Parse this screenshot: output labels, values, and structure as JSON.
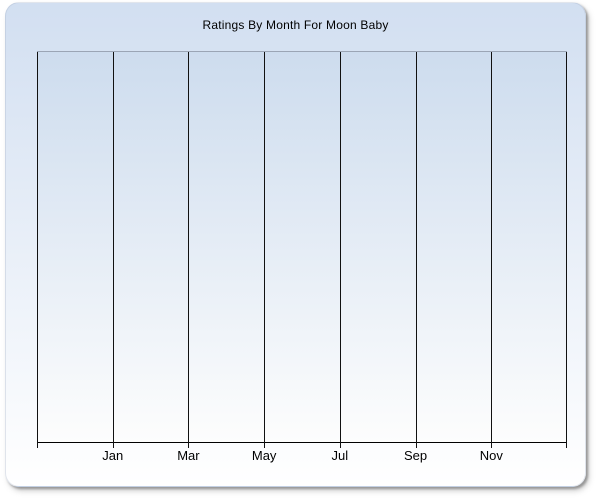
{
  "chart_data": {
    "type": "line",
    "title": "Ratings By Month For Moon Baby",
    "categories": [
      "Jan",
      "Mar",
      "May",
      "Jul",
      "Sep",
      "Nov"
    ],
    "series": [],
    "xlabel": "",
    "ylabel": "",
    "legend_position": "none",
    "grid": "vertical",
    "x_gridline_count": 8,
    "y_tick_labels_visible": false,
    "plot_is_empty": true
  },
  "colors": {
    "page_background": "#ffffff",
    "panel_gradient_top": "#d2dff1",
    "panel_gradient_bottom": "#ffffff",
    "plot_gradient_top": "#cddcee",
    "plot_gradient_bottom": "#fdfdfd",
    "gridline": "#111111",
    "plot_top_border": "#9ba5b5",
    "axis_line": "#000000",
    "title_text": "#000000",
    "label_text": "#000000"
  }
}
